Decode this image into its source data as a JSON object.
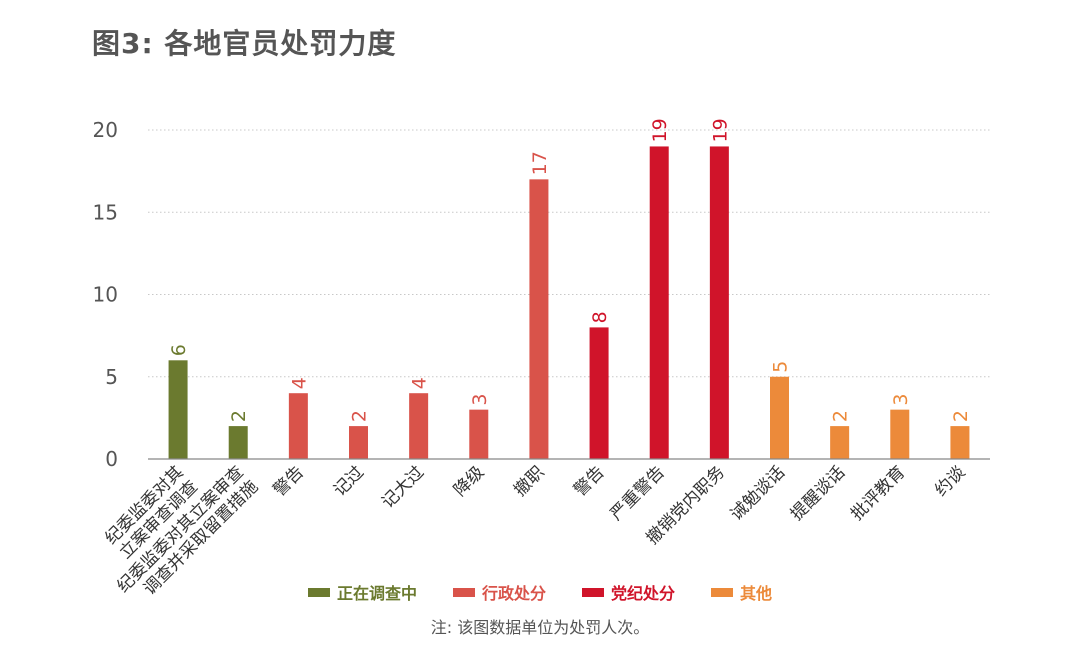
{
  "chart_data": {
    "type": "bar",
    "title": "图3: 各地官员处罚力度",
    "categories": [
      "纪委监委对其\n立案审查调查",
      "纪委监委对其立案审查\n调查并采取留置措施",
      "警告",
      "记过",
      "记大过",
      "降级",
      "撤职",
      "警告",
      "严重警告",
      "撤销党内职务",
      "诫勉谈话",
      "提醒谈话",
      "批评教育",
      "约谈"
    ],
    "values": [
      6,
      2,
      4,
      2,
      4,
      3,
      17,
      8,
      19,
      19,
      5,
      2,
      3,
      2
    ],
    "groups": [
      0,
      0,
      1,
      1,
      1,
      1,
      1,
      2,
      2,
      2,
      3,
      3,
      3,
      3
    ],
    "legend": [
      {
        "name": "正在调查中",
        "color": "#6b7a2f"
      },
      {
        "name": "行政处分",
        "color": "#d9534a"
      },
      {
        "name": "党纪处分",
        "color": "#d0142a"
      },
      {
        "name": "其他",
        "color": "#ec8a3a"
      }
    ],
    "yticks": [
      0,
      5,
      10,
      15,
      20
    ],
    "ylim": [
      0,
      20
    ],
    "grid": true,
    "legend_position": "bottom",
    "note": "注: 该图数据单位为处罚人次。"
  }
}
